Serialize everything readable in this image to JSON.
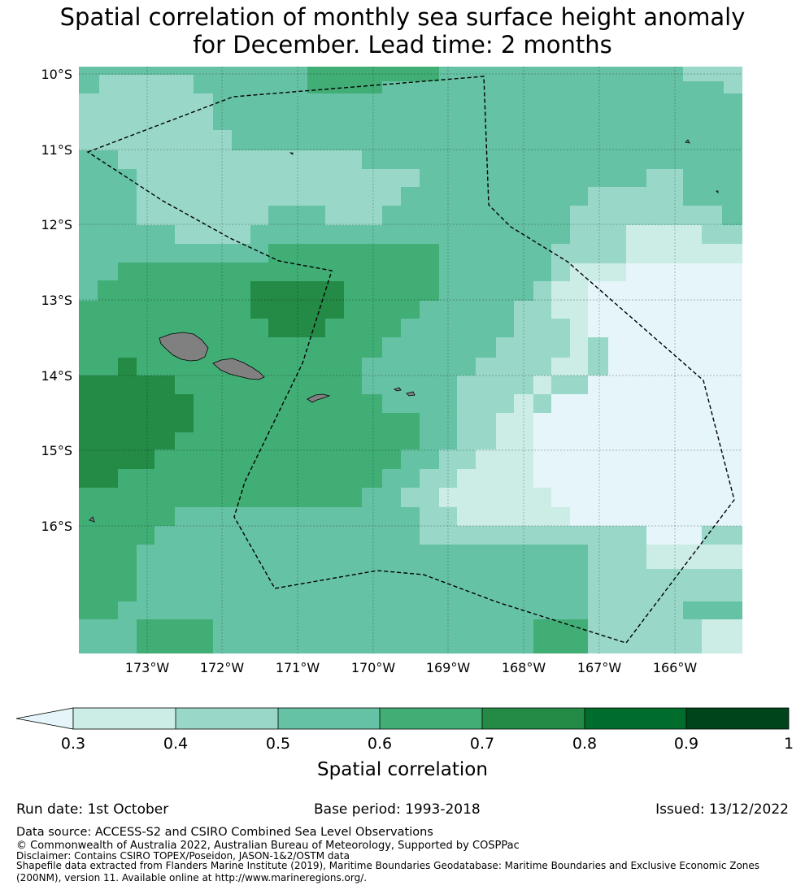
{
  "title": {
    "line1": "Spatial correlation of monthly sea surface height anomaly",
    "line2": "for December. Lead time: 2 months"
  },
  "map": {
    "lat_ticks": [
      "10°S",
      "11°S",
      "12°S",
      "13°S",
      "14°S",
      "15°S",
      "16°S"
    ],
    "lon_ticks": [
      "173°W",
      "172°W",
      "171°W",
      "170°W",
      "169°W",
      "168°W",
      "167°W",
      "166°W"
    ],
    "extent": {
      "lon": [
        -173.9,
        -165.1
      ],
      "lat": [
        -17.75,
        -9.95
      ]
    },
    "features": [
      "eez-boundary-dashed",
      "samoa-islands",
      "american-samoa-islands",
      "swains-island",
      "atafu-atoll"
    ]
  },
  "colorbar": {
    "ticks": [
      "0.3",
      "0.4",
      "0.5",
      "0.6",
      "0.7",
      "0.8",
      "0.9",
      "1"
    ],
    "label": "Spatial correlation",
    "colors": [
      "#e5f5f9",
      "#ccece6",
      "#99d8c9",
      "#66c2a4",
      "#41ae76",
      "#238b45",
      "#006d2c",
      "#00441b"
    ],
    "extend": "min"
  },
  "footer": {
    "run_date": "Run date: 1st October",
    "base_period": "Base period: 1993-2018",
    "issued": "Issued: 13/12/2022",
    "data_source": "Data source: ACCESS-S2 and CSIRO Combined Sea Level Observations",
    "copyright": "© Commonwealth of Australia 2022, Australian Bureau of Meteorology, Supported by COSPPac",
    "disclaimer": "Disclaimer: Contains CSIRO TOPEX/Poseidon, JASON-1&2/OSTM data",
    "shapefile_1": "Shapefile data extracted from Flanders Marine Institute (2019), Maritime Boundaries Geodatabase: Maritime Boundaries and Exclusive Economic Zones",
    "shapefile_2": "(200NM), version 11. Available online at http://www.marineregions.org/."
  }
}
